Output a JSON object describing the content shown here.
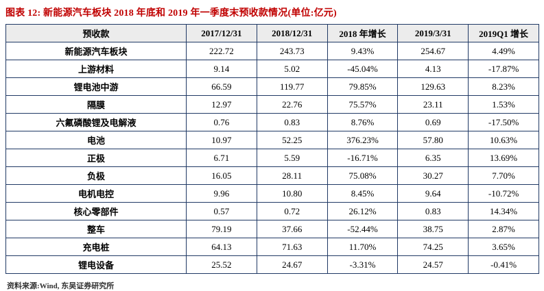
{
  "title": "图表 12: 新能源汽车板块 2018 年底和 2019 年一季度末预收款情况(单位:亿元)",
  "footer": "资料来源:Wind, 东吴证券研究所",
  "colors": {
    "title": "#c00000",
    "table_border": "#1f3864",
    "header_background": "#ececec"
  },
  "chart_data": {
    "type": "table",
    "title": "新能源汽车板块 2018 年底和 2019 年一季度末预收款情况(单位:亿元)",
    "columns": [
      "预收款",
      "2017/12/31",
      "2018/12/31",
      "2018 年增长",
      "2019/3/31",
      "2019Q1 增长"
    ],
    "rows": [
      [
        "新能源汽车板块",
        "222.72",
        "243.73",
        "9.43%",
        "254.67",
        "4.49%"
      ],
      [
        "上游材料",
        "9.14",
        "5.02",
        "-45.04%",
        "4.13",
        "-17.87%"
      ],
      [
        "锂电池中游",
        "66.59",
        "119.77",
        "79.85%",
        "129.63",
        "8.23%"
      ],
      [
        "隔膜",
        "12.97",
        "22.76",
        "75.57%",
        "23.11",
        "1.53%"
      ],
      [
        "六氟磷酸锂及电解液",
        "0.76",
        "0.83",
        "8.76%",
        "0.69",
        "-17.50%"
      ],
      [
        "电池",
        "10.97",
        "52.25",
        "376.23%",
        "57.80",
        "10.63%"
      ],
      [
        "正极",
        "6.71",
        "5.59",
        "-16.71%",
        "6.35",
        "13.69%"
      ],
      [
        "负极",
        "16.05",
        "28.11",
        "75.08%",
        "30.27",
        "7.70%"
      ],
      [
        "电机电控",
        "9.96",
        "10.80",
        "8.45%",
        "9.64",
        "-10.72%"
      ],
      [
        "核心零部件",
        "0.57",
        "0.72",
        "26.12%",
        "0.83",
        "14.34%"
      ],
      [
        "整车",
        "79.19",
        "37.66",
        "-52.44%",
        "38.75",
        "2.87%"
      ],
      [
        "充电桩",
        "64.13",
        "71.63",
        "11.70%",
        "74.25",
        "3.65%"
      ],
      [
        "锂电设备",
        "25.52",
        "24.67",
        "-3.31%",
        "24.57",
        "-0.41%"
      ]
    ]
  }
}
